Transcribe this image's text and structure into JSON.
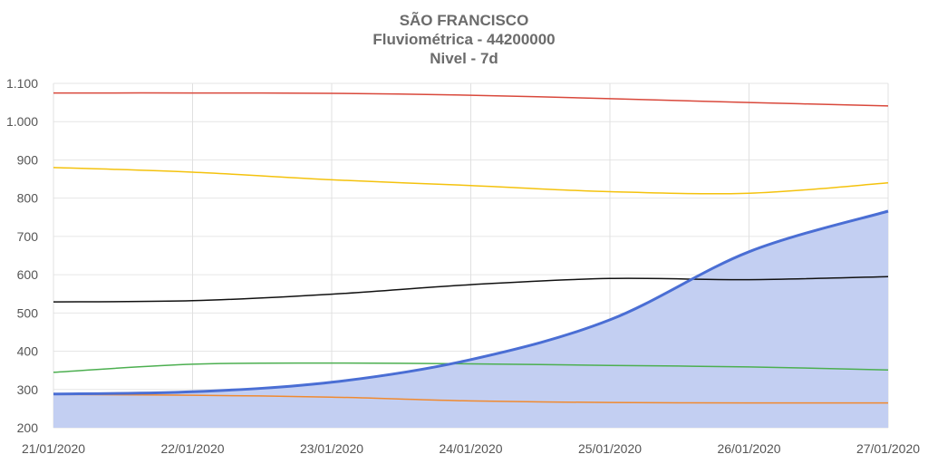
{
  "chart_data": {
    "type": "area",
    "title": "SÃO FRANCISCO",
    "subtitle": "Fluviométrica - 44200000",
    "subtitle2": "Nivel - 7d",
    "xlabel": "",
    "ylabel": "",
    "ylim": [
      200,
      1100
    ],
    "yticks": [
      "200",
      "300",
      "400",
      "500",
      "600",
      "700",
      "800",
      "900",
      "1.000",
      "1.100"
    ],
    "ytick_values": [
      200,
      300,
      400,
      500,
      600,
      700,
      800,
      900,
      1000,
      1100
    ],
    "categories": [
      "21/01/2020",
      "22/01/2020",
      "23/01/2020",
      "24/01/2020",
      "25/01/2020",
      "26/01/2020",
      "27/01/2020"
    ],
    "grid": true,
    "legend": "none",
    "series": [
      {
        "color": "#d9483b",
        "kind": "line",
        "values": [
          1075,
          1075,
          1074,
          1069,
          1060,
          1050,
          1041
        ]
      },
      {
        "color": "#f4c20d",
        "kind": "line",
        "values": [
          880,
          868,
          848,
          833,
          817,
          813,
          840
        ]
      },
      {
        "color": "#111111",
        "kind": "line",
        "values": [
          529,
          532,
          549,
          574,
          590,
          587,
          595
        ]
      },
      {
        "color": "#4caf50",
        "kind": "line",
        "values": [
          345,
          366,
          369,
          367,
          363,
          359,
          351
        ]
      },
      {
        "color": "#f08a30",
        "kind": "line",
        "values": [
          287,
          285,
          280,
          270,
          266,
          265,
          265
        ]
      },
      {
        "color": "#4a6ed4",
        "kind": "area",
        "fill": "#c3cff2",
        "values": [
          288,
          294,
          319,
          378,
          482,
          660,
          766
        ]
      }
    ]
  }
}
